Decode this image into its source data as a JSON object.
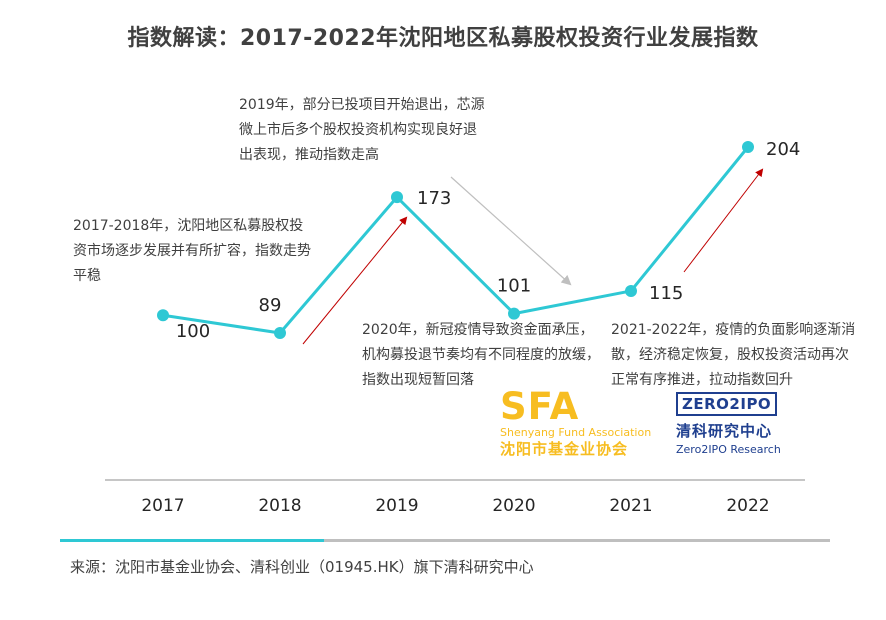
{
  "chart_data": {
    "type": "line",
    "title": "指数解读：2017-2022年沈阳地区私募股权投资行业发展指数",
    "categories": [
      "2017",
      "2018",
      "2019",
      "2020",
      "2021",
      "2022"
    ],
    "values": [
      100,
      89,
      173,
      101,
      115,
      204
    ],
    "data_labels": [
      "100",
      "89",
      "173",
      "101",
      "115",
      "204"
    ],
    "ylim": [
      40,
      230
    ],
    "grid": false,
    "line_color": "#2ec8d4",
    "annotations": [
      "2017-2018年，沈阳地区私募股权投资市场逐步发展并有所扩容，指数走势平稳",
      "2019年，部分已投项目开始退出，芯源微上市后多个股权投资机构实现良好退出表现，推动指数走高",
      "2020年，新冠疫情导致资金面承压，机构募投退节奏均有不同程度的放缓，指数出现短暂回落",
      "2021-2022年，疫情的负面影响逐渐消散，经济稳定恢复，股权投资活动再次正常有序推进，拉动指数回升"
    ]
  },
  "logos": {
    "sfa": {
      "big": "SFA",
      "en": "Shenyang Fund Association",
      "cn": "沈阳市基金业协会",
      "color": "#f7bd21"
    },
    "zero2ipo": {
      "box": "ZERO2IPO",
      "cn": "清科研究中心",
      "en": "Zero2IPO Research",
      "color": "#1f3f8f"
    }
  },
  "source": "来源：沈阳市基金业协会、清科创业（01945.HK）旗下清科研究中心",
  "colors": {
    "arrow_up": "#c00000",
    "arrow_down": "#bfbfbf",
    "axis": "#8c8c8c",
    "accent_bar": "#2ec8d4",
    "text": "#404040"
  }
}
